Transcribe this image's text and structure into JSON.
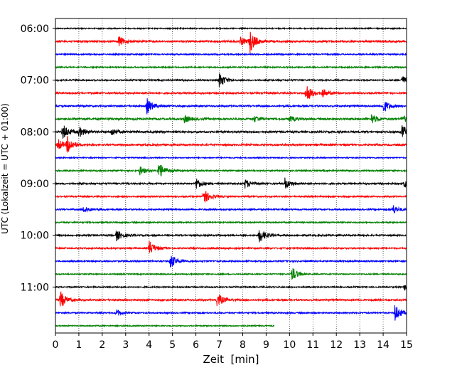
{
  "chart_data": {
    "type": "line",
    "title": "",
    "xlabel": "Zeit  [min]",
    "ylabel": "UTC (Lokalzeit = UTC + 01:00)",
    "xlim": [
      0,
      15
    ],
    "x_ticks": [
      0,
      1,
      2,
      3,
      4,
      5,
      6,
      7,
      8,
      9,
      10,
      11,
      12,
      13,
      14,
      15
    ],
    "y_tick_labels": [
      "06:00",
      "07:00",
      "08:00",
      "09:00",
      "10:00",
      "11:00"
    ],
    "y_tick_rows": [
      0,
      4,
      8,
      12,
      16,
      20
    ],
    "grid": "vertical dotted",
    "legend": "none",
    "row_minutes": 15,
    "start_time": "06:00",
    "series_colors": [
      "#000000",
      "#ff0000",
      "#0000ff",
      "#008000"
    ],
    "rows": [
      {
        "time": "06:00",
        "noise": 0.35,
        "end": 15,
        "events": []
      },
      {
        "time": "06:15",
        "noise": 0.55,
        "end": 15,
        "events": [
          {
            "x": 2.7,
            "amp": 1.0
          },
          {
            "x": 8.3,
            "amp": 2.2
          },
          {
            "x": 7.9,
            "amp": 0.8
          }
        ]
      },
      {
        "time": "06:30",
        "noise": 0.4,
        "end": 15,
        "events": []
      },
      {
        "time": "06:45",
        "noise": 0.4,
        "end": 15,
        "events": []
      },
      {
        "time": "07:00",
        "noise": 0.45,
        "end": 15,
        "events": [
          {
            "x": 7.0,
            "amp": 1.6
          },
          {
            "x": 14.8,
            "amp": 0.9
          }
        ]
      },
      {
        "time": "07:15",
        "noise": 0.5,
        "end": 15,
        "events": [
          {
            "x": 10.7,
            "amp": 2.0
          },
          {
            "x": 11.4,
            "amp": 0.8
          }
        ]
      },
      {
        "time": "07:30",
        "noise": 0.5,
        "end": 15,
        "events": [
          {
            "x": 3.9,
            "amp": 1.6
          },
          {
            "x": 14.0,
            "amp": 1.4
          }
        ]
      },
      {
        "time": "07:45",
        "noise": 0.6,
        "end": 15,
        "events": [
          {
            "x": 5.5,
            "amp": 0.8
          },
          {
            "x": 8.5,
            "amp": 0.6
          },
          {
            "x": 10.0,
            "amp": 0.6
          },
          {
            "x": 13.5,
            "amp": 1.0
          },
          {
            "x": 14.8,
            "amp": 0.7
          }
        ]
      },
      {
        "time": "08:00",
        "noise": 0.6,
        "end": 15,
        "events": [
          {
            "x": 0.3,
            "amp": 1.6
          },
          {
            "x": 1.0,
            "amp": 1.0
          },
          {
            "x": 2.4,
            "amp": 0.8
          },
          {
            "x": 14.8,
            "amp": 1.4
          }
        ]
      },
      {
        "time": "08:15",
        "noise": 0.55,
        "end": 15,
        "events": [
          {
            "x": 0.5,
            "amp": 1.6
          },
          {
            "x": 0.1,
            "amp": 1.2
          }
        ]
      },
      {
        "time": "08:30",
        "noise": 0.35,
        "end": 15,
        "events": []
      },
      {
        "time": "08:45",
        "noise": 0.45,
        "end": 15,
        "events": [
          {
            "x": 4.4,
            "amp": 1.8
          },
          {
            "x": 3.6,
            "amp": 0.9
          }
        ]
      },
      {
        "time": "09:00",
        "noise": 0.5,
        "end": 15,
        "events": [
          {
            "x": 6.0,
            "amp": 1.2
          },
          {
            "x": 8.1,
            "amp": 0.9
          },
          {
            "x": 9.8,
            "amp": 1.1
          },
          {
            "x": 14.9,
            "amp": 0.8
          }
        ]
      },
      {
        "time": "09:15",
        "noise": 0.45,
        "end": 15,
        "events": [
          {
            "x": 6.3,
            "amp": 1.8
          }
        ]
      },
      {
        "time": "09:30",
        "noise": 0.45,
        "end": 15,
        "events": [
          {
            "x": 1.2,
            "amp": 0.8
          },
          {
            "x": 14.4,
            "amp": 1.0
          }
        ]
      },
      {
        "time": "09:45",
        "noise": 0.4,
        "end": 15,
        "events": []
      },
      {
        "time": "10:00",
        "noise": 0.5,
        "end": 15,
        "events": [
          {
            "x": 2.6,
            "amp": 1.1
          },
          {
            "x": 8.7,
            "amp": 1.6
          }
        ]
      },
      {
        "time": "10:15",
        "noise": 0.45,
        "end": 15,
        "events": [
          {
            "x": 4.0,
            "amp": 1.5
          }
        ]
      },
      {
        "time": "10:30",
        "noise": 0.45,
        "end": 15,
        "events": [
          {
            "x": 4.9,
            "amp": 1.6
          }
        ]
      },
      {
        "time": "10:45",
        "noise": 0.35,
        "end": 15,
        "events": [
          {
            "x": 10.1,
            "amp": 1.5
          }
        ]
      },
      {
        "time": "11:00",
        "noise": 0.4,
        "end": 15,
        "events": [
          {
            "x": 14.9,
            "amp": 0.8
          }
        ]
      },
      {
        "time": "11:15",
        "noise": 0.5,
        "end": 15,
        "events": [
          {
            "x": 0.2,
            "amp": 1.8
          },
          {
            "x": 6.9,
            "amp": 1.5
          }
        ]
      },
      {
        "time": "11:30",
        "noise": 0.4,
        "end": 15,
        "events": [
          {
            "x": 2.6,
            "amp": 0.7
          },
          {
            "x": 14.5,
            "amp": 1.8
          }
        ]
      },
      {
        "time": "11:45",
        "noise": 0.35,
        "end": 9.35,
        "events": []
      }
    ]
  }
}
